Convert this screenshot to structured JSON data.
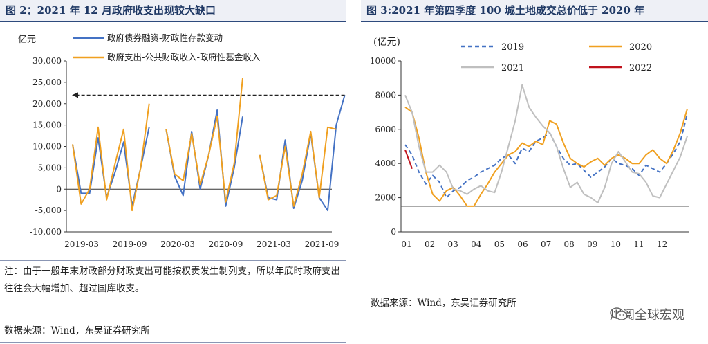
{
  "chart_data": [
    {
      "type": "line",
      "title": "图 2：2021 年 12 月政府收支出现较大缺口",
      "ylabel": "亿元",
      "ylim": [
        -10000,
        30000
      ],
      "yticks": [
        "-10,000",
        "-5,000",
        "0",
        "5,000",
        "10,000",
        "15,000",
        "20,000",
        "25,000",
        "30,000"
      ],
      "x_tick_labels": [
        "2019-03",
        "2019-09",
        "2020-03",
        "2020-09",
        "2021-03",
        "2021-09"
      ],
      "legend": "top",
      "grid": false,
      "annotation": "dashed arrow from December 2021 pointing left at 22,000",
      "series": [
        {
          "name": "政府债券融资-财政性存款变动",
          "color": "#4472c4",
          "segments": [
            [
              10500,
              -1000,
              -1000,
              12000,
              -2000,
              4000,
              11000,
              -4000,
              5000,
              14500
            ],
            [
              14000,
              3000,
              -1500,
              13500,
              0,
              8000,
              18500,
              -4000,
              5000,
              17000
            ],
            [
              8000,
              -2000,
              -2500,
              11500,
              -4500,
              2000,
              13000,
              -2000,
              -5000,
              15000,
              22000
            ]
          ]
        },
        {
          "name": "政府支出-公共财政收入-政府性基金收入",
          "color": "#f0a020",
          "segments": [
            [
              10500,
              -3500,
              0,
              14500,
              -2500,
              6000,
              14000,
              -5000,
              5000,
              20000
            ],
            [
              14000,
              3500,
              2000,
              13000,
              1000,
              8000,
              17000,
              -3000,
              6000,
              26000
            ],
            [
              8000,
              -2500,
              -1500,
              10000,
              -4000,
              3500,
              13500,
              -2000,
              14500,
              14000
            ]
          ]
        }
      ],
      "note": "注：由于一般年末财政部分财政支出可能按权责发生制列支，所以年底时政府支出往往会大幅增加、超过国库收支。",
      "source": "数据来源：Wind，东吴证券研究所"
    },
    {
      "type": "line",
      "title": "图 3:2021 年第四季度 100 城土地成交总价低于 2020 年",
      "ylabel": "(亿元)",
      "ylim": [
        0,
        10000
      ],
      "yticks": [
        "0",
        "2000",
        "4000",
        "6000",
        "8000",
        "10000"
      ],
      "x_tick_labels": [
        "01",
        "02",
        "03",
        "04",
        "05",
        "06",
        "07",
        "08",
        "09",
        "10",
        "11",
        "12"
      ],
      "legend": "top",
      "grid": false,
      "series": [
        {
          "name": "2019",
          "color": "#4472c4",
          "style": "dashed",
          "values": [
            5100,
            4500,
            3500,
            2800,
            3300,
            2900,
            2000,
            2400,
            2600,
            3000,
            3200,
            3500,
            3700,
            3900,
            4300,
            4500,
            4000,
            4900,
            4700,
            5300,
            5500,
            5800,
            5000,
            4300,
            3900,
            4000,
            3600,
            3200,
            3500,
            3800,
            4300,
            4000,
            3900,
            3700,
            3300,
            3900,
            3700,
            3500,
            4000,
            4600,
            5300,
            6900
          ]
        },
        {
          "name": "2020",
          "color": "#f0a020",
          "style": "solid",
          "values": [
            7300,
            7000,
            5500,
            3500,
            2200,
            1800,
            2400,
            2600,
            2100,
            1500,
            1500,
            2200,
            2800,
            3500,
            4000,
            4500,
            4700,
            5200,
            5000,
            5300,
            5100,
            6500,
            6300,
            5200,
            4300,
            4000,
            3800,
            4100,
            4300,
            3900,
            4300,
            4500,
            4300,
            4000,
            4000,
            4500,
            4800,
            4300,
            4000,
            4800,
            5800,
            7200
          ]
        },
        {
          "name": "2021",
          "color": "#bfbfbf",
          "style": "solid",
          "values": [
            8000,
            7000,
            5000,
            3500,
            3500,
            3900,
            3500,
            2500,
            2400,
            2200,
            2500,
            2700,
            2400,
            2300,
            3500,
            5000,
            6500,
            8600,
            7300,
            6700,
            6200,
            5800,
            5000,
            3700,
            2600,
            2900,
            2200,
            2000,
            1700,
            2600,
            4000,
            4700,
            4100,
            3500,
            3400,
            2900,
            2100,
            2000,
            2800,
            3600,
            4400,
            5600
          ]
        },
        {
          "name": "2022",
          "color": "#c0121c",
          "style": "solid",
          "values": [
            4800,
            3700
          ]
        }
      ],
      "source": "数据来源：Wind，东吴证券研究所"
    }
  ],
  "watermark": "川阅全球宏观"
}
